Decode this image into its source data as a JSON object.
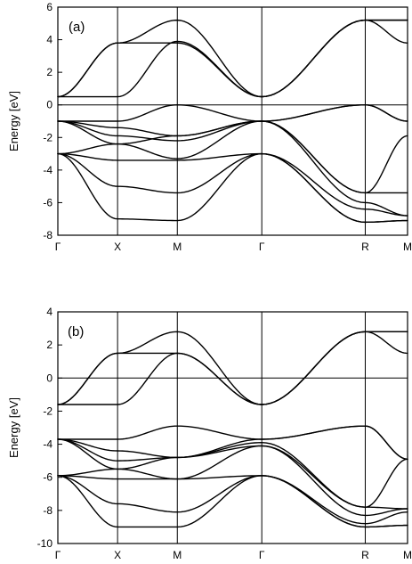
{
  "chart_data": [
    {
      "type": "line",
      "panel_label": "(a)",
      "ylabel": "Energy  [eV]",
      "ylim": [
        -8,
        6
      ],
      "yticks": [
        "-8",
        "-6",
        "-4",
        "-2",
        "0",
        "2",
        "4",
        "6"
      ],
      "k_points": [
        {
          "label": "Γ",
          "pos": 0
        },
        {
          "label": "X",
          "pos": 1
        },
        {
          "label": "M",
          "pos": 2
        },
        {
          "label": "Γ",
          "pos": 3.414
        },
        {
          "label": "R",
          "pos": 5.146
        },
        {
          "label": "M",
          "pos": 5.854
        }
      ],
      "zero_line": true,
      "series": [
        {
          "x": [
            0,
            1,
            2,
            3.414,
            5.146,
            5.854
          ],
          "y": [
            0.5,
            0.5,
            3.9,
            0.5,
            5.2,
            5.2
          ]
        },
        {
          "x": [
            0,
            1,
            2,
            3.414,
            5.146,
            5.854
          ],
          "y": [
            0.5,
            3.8,
            5.2,
            0.5,
            5.2,
            3.8
          ]
        },
        {
          "x": [
            0,
            1,
            2,
            3.414,
            5.146,
            5.854
          ],
          "y": [
            0.5,
            3.8,
            3.8,
            0.5,
            5.2,
            5.2
          ]
        },
        {
          "x": [
            0,
            1,
            2,
            3.414,
            5.146,
            5.854
          ],
          "y": [
            -1.0,
            -1.0,
            0.0,
            -1.0,
            0.0,
            -1.0
          ]
        },
        {
          "x": [
            0,
            1,
            2,
            3.414,
            5.146,
            5.854
          ],
          "y": [
            -1.0,
            -1.4,
            -1.9,
            -1.0,
            0.0,
            -1.0
          ]
        },
        {
          "x": [
            0,
            1,
            2,
            3.414,
            5.146,
            5.854
          ],
          "y": [
            -1.0,
            -1.9,
            -2.2,
            -1.0,
            -5.4,
            -1.9
          ]
        },
        {
          "x": [
            0,
            1,
            2,
            3.414,
            5.146,
            5.854
          ],
          "y": [
            -1.0,
            -2.4,
            -3.3,
            -1.0,
            -5.4,
            -5.4
          ]
        },
        {
          "x": [
            0,
            1,
            2,
            3.414,
            5.146,
            5.854
          ],
          "y": [
            -3.0,
            -2.4,
            -1.9,
            -1.0,
            -6.0,
            -6.8
          ]
        },
        {
          "x": [
            0,
            1,
            2,
            3.414,
            5.146,
            5.854
          ],
          "y": [
            -3.0,
            -3.4,
            -3.4,
            -3.0,
            -6.4,
            -6.8
          ]
        },
        {
          "x": [
            0,
            1,
            2,
            3.414,
            5.146,
            5.854
          ],
          "y": [
            -3.0,
            -5.0,
            -5.4,
            -3.0,
            -7.2,
            -7.1
          ]
        },
        {
          "x": [
            0,
            1,
            2,
            3.414,
            5.146,
            5.854
          ],
          "y": [
            -3.0,
            -7.0,
            -7.1,
            -3.0,
            -7.2,
            -7.1
          ]
        }
      ]
    },
    {
      "type": "line",
      "panel_label": "(b)",
      "ylabel": "Energy  [eV]",
      "ylim": [
        -10,
        4
      ],
      "yticks": [
        "-10",
        "-8",
        "-6",
        "-4",
        "-2",
        "0",
        "2",
        "4"
      ],
      "k_points": [
        {
          "label": "Γ",
          "pos": 0
        },
        {
          "label": "X",
          "pos": 1
        },
        {
          "label": "M",
          "pos": 2
        },
        {
          "label": "Γ",
          "pos": 3.414
        },
        {
          "label": "R",
          "pos": 5.146
        },
        {
          "label": "M",
          "pos": 5.854
        }
      ],
      "zero_line": true,
      "series": [
        {
          "x": [
            0,
            1,
            2,
            3.414,
            5.146,
            5.854
          ],
          "y": [
            -1.6,
            -1.6,
            1.5,
            -1.6,
            2.8,
            2.8
          ]
        },
        {
          "x": [
            0,
            1,
            2,
            3.414,
            5.146,
            5.854
          ],
          "y": [
            -1.6,
            1.5,
            2.8,
            -1.6,
            2.8,
            1.5
          ]
        },
        {
          "x": [
            0,
            1,
            2,
            3.414,
            5.146,
            5.854
          ],
          "y": [
            -1.6,
            1.5,
            1.5,
            -1.6,
            2.8,
            2.8
          ]
        },
        {
          "x": [
            0,
            1,
            2,
            3.414,
            5.146,
            5.854
          ],
          "y": [
            -3.7,
            -3.7,
            -2.9,
            -3.7,
            -2.9,
            -4.9
          ]
        },
        {
          "x": [
            0,
            1,
            2,
            3.414,
            5.146,
            5.854
          ],
          "y": [
            -3.7,
            -4.4,
            -4.8,
            -3.7,
            -2.9,
            -4.9
          ]
        },
        {
          "x": [
            0,
            1,
            2,
            3.414,
            5.146,
            5.854
          ],
          "y": [
            -3.7,
            -5.0,
            -4.8,
            -3.9,
            -7.8,
            -4.9
          ]
        },
        {
          "x": [
            0,
            1,
            2,
            3.414,
            5.146,
            5.854
          ],
          "y": [
            -3.7,
            -5.5,
            -6.1,
            -4.1,
            -7.8,
            -7.9
          ]
        },
        {
          "x": [
            0,
            1,
            2,
            3.414,
            5.146,
            5.854
          ],
          "y": [
            -5.9,
            -5.5,
            -4.8,
            -4.1,
            -8.3,
            -7.9
          ]
        },
        {
          "x": [
            0,
            1,
            2,
            3.414,
            5.146,
            5.854
          ],
          "y": [
            -5.9,
            -6.1,
            -6.1,
            -5.9,
            -8.8,
            -8.1
          ]
        },
        {
          "x": [
            0,
            1,
            2,
            3.414,
            5.146,
            5.854
          ],
          "y": [
            -5.9,
            -7.6,
            -8.1,
            -5.9,
            -9.0,
            -8.9
          ]
        },
        {
          "x": [
            0,
            1,
            2,
            3.414,
            5.146,
            5.854
          ],
          "y": [
            -5.9,
            -9.0,
            -9.0,
            -5.9,
            -9.0,
            -8.9
          ]
        }
      ]
    }
  ]
}
